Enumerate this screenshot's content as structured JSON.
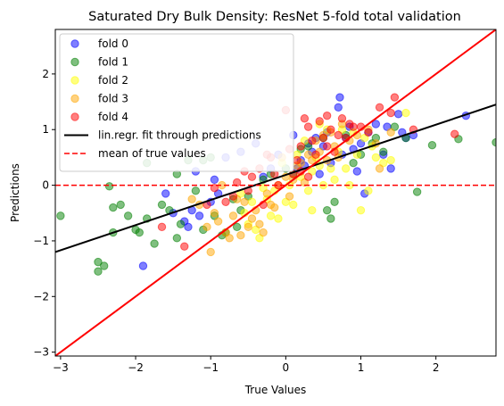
{
  "chart_data": {
    "type": "scatter",
    "title": "Saturated Dry Bulk Density: ResNet 5-fold total validation",
    "xlabel": "True Values",
    "ylabel": "Predictions",
    "xlim": [
      -3.07,
      2.8
    ],
    "ylim": [
      -3.07,
      2.8
    ],
    "xticks": [
      -3,
      -2,
      -1,
      0,
      1,
      2
    ],
    "yticks": [
      -3,
      -2,
      -1,
      0,
      1,
      2
    ],
    "xtick_labels": [
      "−3",
      "−2",
      "−1",
      "0",
      "1",
      "2"
    ],
    "ytick_labels": [
      "−3",
      "−2",
      "−1",
      "0",
      "1",
      "2"
    ],
    "grid": false,
    "legend_position": "top-left",
    "series": [
      {
        "name": "fold 0",
        "color": "#0000ff",
        "points": [
          [
            -1.9,
            -1.45
          ],
          [
            -1.6,
            -0.15
          ],
          [
            -1.5,
            -0.5
          ],
          [
            -1.35,
            -0.65
          ],
          [
            -1.3,
            -0.75
          ],
          [
            -1.25,
            -0.45
          ],
          [
            -1.2,
            0.25
          ],
          [
            -1.15,
            -0.55
          ],
          [
            -1.0,
            -0.3
          ],
          [
            -0.95,
            0.1
          ],
          [
            -0.9,
            -0.15
          ],
          [
            -0.8,
            0.5
          ],
          [
            -0.6,
            0.6
          ],
          [
            -0.4,
            0.75
          ],
          [
            -0.3,
            0.15
          ],
          [
            0.1,
            0.9
          ],
          [
            0.15,
            0.3
          ],
          [
            0.2,
            0.45
          ],
          [
            0.3,
            0.75
          ],
          [
            0.35,
            0.6
          ],
          [
            0.4,
            0.85
          ],
          [
            0.5,
            0.7
          ],
          [
            0.55,
            0.95
          ],
          [
            0.6,
            0.4
          ],
          [
            0.7,
            1.4
          ],
          [
            0.72,
            1.58
          ],
          [
            0.75,
            0.55
          ],
          [
            0.8,
            0.85
          ],
          [
            0.85,
            1.05
          ],
          [
            0.9,
            0.65
          ],
          [
            1.0,
            0.75
          ],
          [
            1.05,
            -0.15
          ],
          [
            1.1,
            0.95
          ],
          [
            1.2,
            1.1
          ],
          [
            1.3,
            0.55
          ],
          [
            1.35,
            1.05
          ],
          [
            1.4,
            0.3
          ],
          [
            1.5,
            1.28
          ],
          [
            1.55,
            0.95
          ],
          [
            1.6,
            0.85
          ],
          [
            1.7,
            0.9
          ],
          [
            2.4,
            1.25
          ],
          [
            0.25,
            0.35
          ],
          [
            0.45,
            0.2
          ],
          [
            -0.2,
            0.3
          ],
          [
            0.95,
            0.25
          ],
          [
            -0.1,
            0.55
          ]
        ]
      },
      {
        "name": "fold 1",
        "color": "#008000",
        "points": [
          [
            -3.0,
            -0.55
          ],
          [
            -2.5,
            -1.38
          ],
          [
            -2.5,
            -1.55
          ],
          [
            -2.42,
            -1.45
          ],
          [
            -2.35,
            -0.02
          ],
          [
            -2.3,
            -0.85
          ],
          [
            -2.3,
            -0.4
          ],
          [
            -2.2,
            -0.35
          ],
          [
            -2.1,
            -0.55
          ],
          [
            -2.0,
            -0.8
          ],
          [
            -1.95,
            -0.85
          ],
          [
            -1.85,
            0.4
          ],
          [
            -1.85,
            -0.6
          ],
          [
            -1.75,
            -1.05
          ],
          [
            -1.65,
            -0.35
          ],
          [
            -1.55,
            -0.45
          ],
          [
            -1.45,
            -0.95
          ],
          [
            -1.4,
            -0.7
          ],
          [
            -1.3,
            0.45
          ],
          [
            -1.2,
            -0.1
          ],
          [
            -1.1,
            -0.8
          ],
          [
            -1.0,
            0.5
          ],
          [
            -0.95,
            -0.55
          ],
          [
            -0.85,
            -0.9
          ],
          [
            -0.8,
            -0.85
          ],
          [
            -0.7,
            -0.25
          ],
          [
            -0.65,
            -0.75
          ],
          [
            -0.6,
            -0.45
          ],
          [
            -0.5,
            -0.2
          ],
          [
            -0.3,
            0.1
          ],
          [
            -0.2,
            0.2
          ],
          [
            0.0,
            0.3
          ],
          [
            0.1,
            0.2
          ],
          [
            0.2,
            0.65
          ],
          [
            0.3,
            0.7
          ],
          [
            0.5,
            0.85
          ],
          [
            0.55,
            -0.45
          ],
          [
            0.6,
            -0.6
          ],
          [
            0.8,
            0.9
          ],
          [
            0.9,
            0.4
          ],
          [
            1.0,
            0.55
          ],
          [
            1.15,
            0.75
          ],
          [
            1.2,
            0.85
          ],
          [
            1.3,
            0.6
          ],
          [
            1.45,
            1.05
          ],
          [
            1.6,
            0.85
          ],
          [
            1.75,
            -0.12
          ],
          [
            1.95,
            0.72
          ],
          [
            2.3,
            0.83
          ],
          [
            2.8,
            0.77
          ],
          [
            0.65,
            -0.3
          ],
          [
            -1.45,
            0.2
          ],
          [
            -1.1,
            0.45
          ]
        ]
      },
      {
        "name": "fold 2",
        "color": "#ffff00",
        "points": [
          [
            -0.55,
            -0.5
          ],
          [
            -0.5,
            -0.7
          ],
          [
            -0.45,
            -0.3
          ],
          [
            -0.4,
            -0.8
          ],
          [
            -0.35,
            -0.95
          ],
          [
            -0.3,
            -0.05
          ],
          [
            -0.25,
            -0.25
          ],
          [
            -0.2,
            -0.55
          ],
          [
            -0.15,
            -0.1
          ],
          [
            -0.1,
            -0.6
          ],
          [
            0.0,
            -0.3
          ],
          [
            0.05,
            0.0
          ],
          [
            0.1,
            -0.35
          ],
          [
            0.2,
            0.15
          ],
          [
            0.3,
            -0.1
          ],
          [
            0.35,
            -0.45
          ],
          [
            0.4,
            0.5
          ],
          [
            0.45,
            0.35
          ],
          [
            0.5,
            0.0
          ],
          [
            0.55,
            1.0
          ],
          [
            0.6,
            0.3
          ],
          [
            0.65,
            0.1
          ],
          [
            0.7,
            0.6
          ],
          [
            0.8,
            0.3
          ],
          [
            0.85,
            0.0
          ],
          [
            0.9,
            0.95
          ],
          [
            0.95,
            0.55
          ],
          [
            1.0,
            -0.45
          ],
          [
            1.05,
            0.85
          ],
          [
            1.1,
            -0.1
          ],
          [
            1.15,
            0.7
          ],
          [
            1.2,
            0.5
          ],
          [
            1.3,
            0.4
          ],
          [
            1.4,
            0.45
          ],
          [
            1.6,
            1.3
          ],
          [
            0.25,
            0.8
          ],
          [
            -0.05,
            0.4
          ],
          [
            0.75,
            1.0
          ],
          [
            0.45,
            1.1
          ],
          [
            -0.6,
            -0.15
          ],
          [
            0.15,
            0.55
          ],
          [
            0.35,
            0.25
          ]
        ]
      },
      {
        "name": "fold 3",
        "color": "#ffa500",
        "points": [
          [
            -1.25,
            -0.25
          ],
          [
            -1.15,
            -0.35
          ],
          [
            -1.05,
            -0.75
          ],
          [
            -1.0,
            -1.2
          ],
          [
            -0.95,
            -0.5
          ],
          [
            -0.9,
            -0.65
          ],
          [
            -0.85,
            0.0
          ],
          [
            -0.8,
            -0.85
          ],
          [
            -0.75,
            -0.95
          ],
          [
            -0.7,
            -0.55
          ],
          [
            -0.6,
            -0.9
          ],
          [
            -0.55,
            -0.3
          ],
          [
            -0.5,
            -0.75
          ],
          [
            -0.45,
            -0.6
          ],
          [
            -0.4,
            -0.45
          ],
          [
            -0.35,
            -0.7
          ],
          [
            -0.3,
            -0.85
          ],
          [
            -0.25,
            -0.15
          ],
          [
            -0.2,
            -0.35
          ],
          [
            -0.15,
            -0.4
          ],
          [
            -0.1,
            0.0
          ],
          [
            0.0,
            0.15
          ],
          [
            0.05,
            -0.2
          ],
          [
            0.1,
            0.1
          ],
          [
            0.15,
            0.35
          ],
          [
            0.2,
            0.4
          ],
          [
            0.3,
            0.55
          ],
          [
            0.35,
            0.45
          ],
          [
            0.4,
            0.8
          ],
          [
            0.45,
            0.6
          ],
          [
            0.5,
            0.9
          ],
          [
            0.55,
            0.45
          ],
          [
            0.6,
            0.95
          ],
          [
            0.65,
            0.7
          ],
          [
            0.75,
            1.1
          ],
          [
            0.85,
            0.8
          ],
          [
            0.95,
            0.9
          ],
          [
            1.1,
            1.0
          ],
          [
            1.2,
            0.75
          ],
          [
            1.25,
            0.3
          ],
          [
            1.4,
            0.95
          ],
          [
            -0.65,
            -0.25
          ],
          [
            0.25,
            0.05
          ],
          [
            -0.05,
            0.5
          ],
          [
            0.7,
            0.5
          ]
        ]
      },
      {
        "name": "fold 4",
        "color": "#ff0000",
        "points": [
          [
            -1.65,
            -0.75
          ],
          [
            -1.35,
            -1.1
          ],
          [
            -1.05,
            -0.35
          ],
          [
            -0.95,
            -0.05
          ],
          [
            -0.7,
            -0.2
          ],
          [
            -0.65,
            0.05
          ],
          [
            -0.55,
            0.25
          ],
          [
            -0.5,
            -0.1
          ],
          [
            -0.45,
            0.15
          ],
          [
            -0.35,
            0.3
          ],
          [
            -0.3,
            -0.35
          ],
          [
            -0.2,
            0.5
          ],
          [
            -0.15,
            0.2
          ],
          [
            -0.1,
            0.0
          ],
          [
            0.0,
            1.35
          ],
          [
            0.05,
            0.65
          ],
          [
            0.1,
            0.2
          ],
          [
            0.15,
            0.45
          ],
          [
            0.2,
            0.25
          ],
          [
            0.25,
            1.2
          ],
          [
            0.3,
            1.05
          ],
          [
            0.35,
            0.8
          ],
          [
            0.4,
            0.55
          ],
          [
            0.45,
            1.15
          ],
          [
            0.5,
            0.85
          ],
          [
            0.55,
            0.7
          ],
          [
            0.6,
            1.0
          ],
          [
            0.65,
            0.6
          ],
          [
            0.7,
            0.9
          ],
          [
            0.75,
            1.2
          ],
          [
            0.8,
            0.85
          ],
          [
            0.9,
            1.05
          ],
          [
            1.0,
            1.05
          ],
          [
            1.1,
            0.95
          ],
          [
            1.25,
            1.4
          ],
          [
            1.4,
            1.3
          ],
          [
            1.45,
            1.58
          ],
          [
            1.7,
            1.0
          ],
          [
            2.25,
            0.92
          ],
          [
            -0.25,
            0.55
          ],
          [
            0.3,
            0.15
          ],
          [
            0.2,
            0.7
          ],
          [
            -0.8,
            -0.3
          ],
          [
            0.55,
            1.25
          ],
          [
            0.85,
            1.1
          ]
        ]
      }
    ],
    "lines": [
      {
        "name": "lin.regr. fit through predictions",
        "color": "#000000",
        "style": "solid",
        "x": [
          -3.07,
          2.8
        ],
        "y": [
          -1.2,
          1.45
        ]
      },
      {
        "name": "mean of true values",
        "color": "#ff0000",
        "style": "dashed",
        "x": [
          -3.07,
          2.8
        ],
        "y": [
          0.0,
          0.0
        ]
      },
      {
        "name": "",
        "color": "#ff0000",
        "style": "solid",
        "x": [
          -3.07,
          2.8
        ],
        "y": [
          -3.07,
          2.8
        ]
      }
    ]
  }
}
